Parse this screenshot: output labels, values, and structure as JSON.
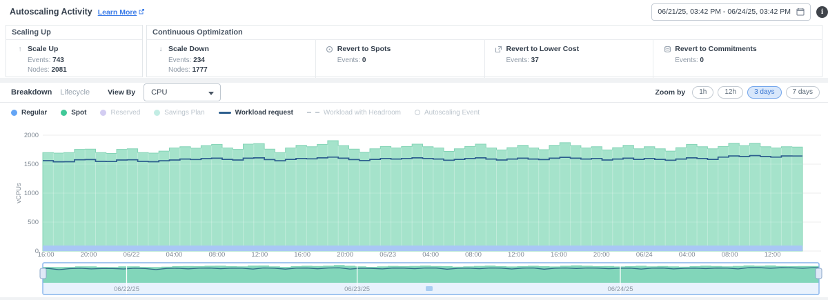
{
  "header": {
    "title": "Autoscaling Activity",
    "learn_more": "Learn More",
    "date_range": "06/21/25, 03:42 PM - 06/24/25, 03:42 PM",
    "info_icon": "i"
  },
  "stats": {
    "groups": [
      {
        "title": "Scaling Up",
        "cards": [
          {
            "icon": "arrow-up",
            "glyph": "↑",
            "title": "Scale Up",
            "lines": [
              {
                "label": "Events:",
                "value": "743"
              },
              {
                "label": "Nodes:",
                "value": "2081"
              }
            ]
          }
        ]
      },
      {
        "title": "Continuous Optimization",
        "cards": [
          {
            "icon": "arrow-down",
            "glyph": "↓",
            "title": "Scale Down",
            "lines": [
              {
                "label": "Events:",
                "value": "234"
              },
              {
                "label": "Nodes:",
                "value": "1777"
              }
            ]
          },
          {
            "icon": "spot-circle",
            "glyph": "svg-circle",
            "title": "Revert to Spots",
            "lines": [
              {
                "label": "Events:",
                "value": "0"
              }
            ]
          },
          {
            "icon": "arrow-up-right-box",
            "glyph": "svg-extbox",
            "title": "Revert to Lower Cost",
            "lines": [
              {
                "label": "Events:",
                "value": "37"
              }
            ]
          },
          {
            "icon": "layers",
            "glyph": "svg-layers",
            "title": "Revert to Commitments",
            "lines": [
              {
                "label": "Events:",
                "value": "0"
              }
            ]
          }
        ]
      }
    ]
  },
  "controls": {
    "tabs": [
      {
        "label": "Breakdown",
        "active": true
      },
      {
        "label": "Lifecycle",
        "active": false
      }
    ],
    "view_by_label": "View By",
    "view_by_value": "CPU",
    "zoom_by_label": "Zoom by",
    "zoom_options": [
      {
        "label": "1h",
        "active": false
      },
      {
        "label": "12h",
        "active": false
      },
      {
        "label": "3 days",
        "active": true
      },
      {
        "label": "7 days",
        "active": false
      }
    ]
  },
  "legend": [
    {
      "label": "Regular",
      "swatch": "dot",
      "color": "#64a5f5",
      "active": true
    },
    {
      "label": "Spot",
      "swatch": "dot",
      "color": "#41c998",
      "active": true
    },
    {
      "label": "Reserved",
      "swatch": "dot",
      "color": "#d3cdf2",
      "active": false
    },
    {
      "label": "Savings Plan",
      "swatch": "dot",
      "color": "#c3ede4",
      "active": false
    },
    {
      "label": "Workload request",
      "swatch": "line",
      "color": "#2d5f8e",
      "active": true
    },
    {
      "label": "Workload with Headroom",
      "swatch": "dash",
      "color": "#c6cdd4",
      "active": false
    },
    {
      "label": "Autoscaling Event",
      "swatch": "ring",
      "color": "#c6cdd4",
      "active": false
    }
  ],
  "chart_data": {
    "type": "area",
    "ylabel": "vCPUs",
    "ylim": [
      0,
      2000
    ],
    "yticks": [
      0,
      500,
      1000,
      1500,
      2000
    ],
    "xticks": [
      "16:00",
      "20:00",
      "06/22",
      "04:00",
      "08:00",
      "12:00",
      "16:00",
      "20:00",
      "06/23",
      "04:00",
      "08:00",
      "12:00",
      "16:00",
      "20:00",
      "06/24",
      "04:00",
      "08:00",
      "12:00"
    ],
    "legend_position": "top-left",
    "grid": true,
    "series": [
      {
        "name": "Regular",
        "type": "area",
        "color": "#a9c7f5",
        "constant": 95
      },
      {
        "name": "Spot",
        "type": "area",
        "color": "#a5e3cb",
        "stacked_top": true,
        "values": [
          1700,
          1690,
          1700,
          1755,
          1760,
          1700,
          1685,
          1755,
          1765,
          1700,
          1690,
          1725,
          1780,
          1800,
          1775,
          1820,
          1840,
          1780,
          1755,
          1845,
          1855,
          1760,
          1700,
          1780,
          1825,
          1800,
          1840,
          1905,
          1820,
          1760,
          1705,
          1765,
          1805,
          1780,
          1805,
          1845,
          1800,
          1780,
          1720,
          1765,
          1805,
          1845,
          1780,
          1745,
          1785,
          1825,
          1780,
          1750,
          1825,
          1870,
          1820,
          1780,
          1800,
          1745,
          1785,
          1825,
          1765,
          1800,
          1765,
          1725,
          1785,
          1840,
          1800,
          1765,
          1805,
          1860,
          1820,
          1860,
          1800,
          1780,
          1800,
          1795
        ]
      },
      {
        "name": "Workload request",
        "type": "line",
        "color": "#2d5f8e",
        "values": [
          1560,
          1540,
          1542,
          1575,
          1578,
          1548,
          1545,
          1572,
          1575,
          1548,
          1542,
          1558,
          1572,
          1588,
          1580,
          1595,
          1602,
          1582,
          1572,
          1602,
          1608,
          1578,
          1558,
          1582,
          1598,
          1592,
          1608,
          1622,
          1602,
          1578,
          1562,
          1582,
          1598,
          1588,
          1598,
          1608,
          1598,
          1588,
          1568,
          1582,
          1598,
          1608,
          1588,
          1572,
          1588,
          1602,
          1588,
          1578,
          1602,
          1618,
          1602,
          1588,
          1598,
          1572,
          1588,
          1602,
          1582,
          1598,
          1582,
          1568,
          1588,
          1608,
          1598,
          1582,
          1622,
          1642,
          1632,
          1648,
          1632,
          1622,
          1642,
          1640
        ]
      }
    ],
    "minimap": {
      "area_color": "#82d6ba",
      "line_color": "#2f6b86",
      "frame_color": "#86b4ec",
      "strip_color": "#e9f2fd",
      "labels": [
        {
          "text": "06/22/25",
          "pos": 0.108
        },
        {
          "text": "06/23/25",
          "pos": 0.405
        },
        {
          "text": "06/24/25",
          "pos": 0.744
        }
      ]
    }
  }
}
